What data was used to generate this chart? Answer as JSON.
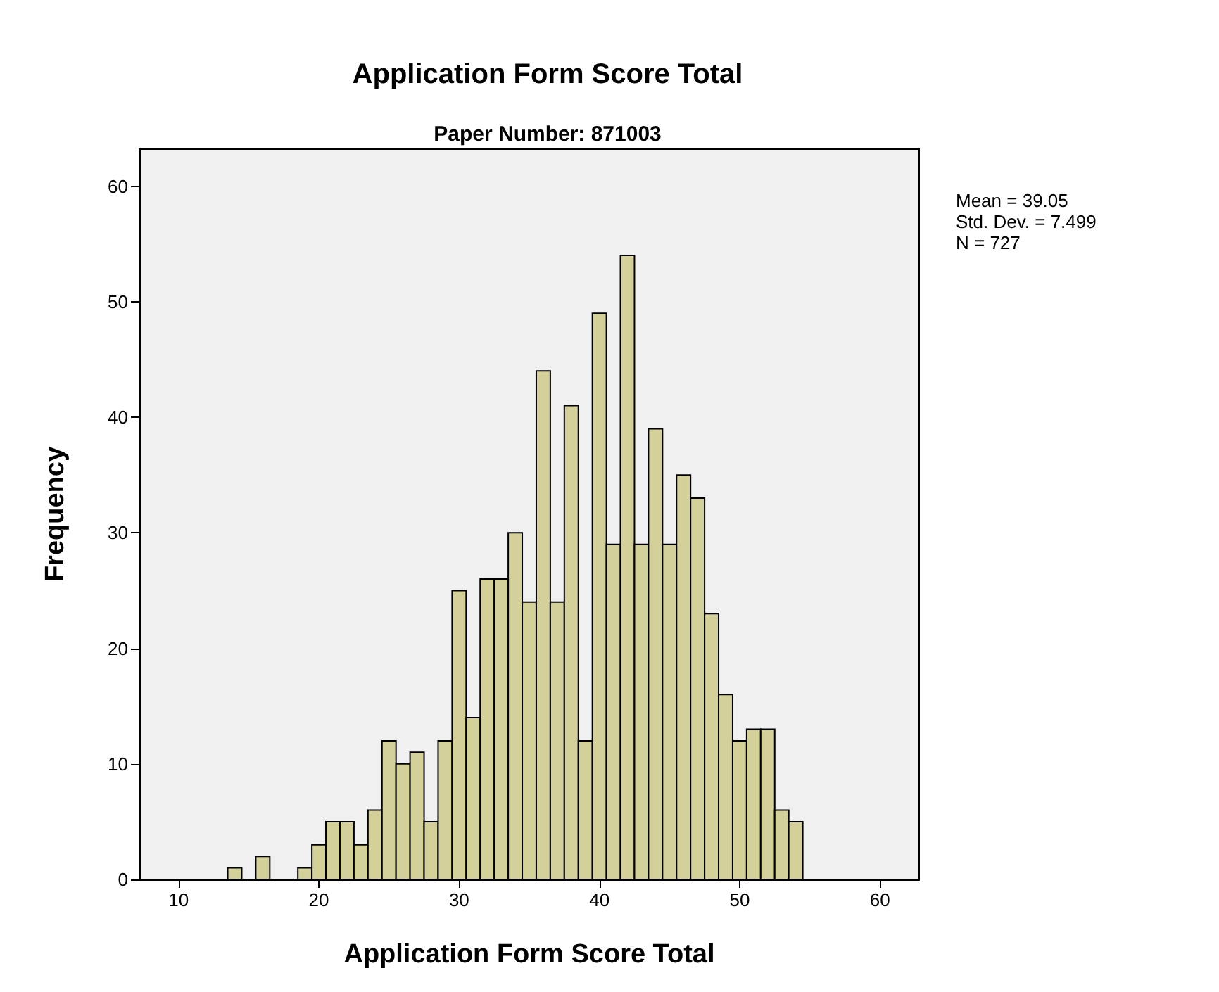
{
  "chart_data": {
    "type": "histogram",
    "title": "Application Form Score Total",
    "subtitle": "Paper Number: 871003",
    "xlabel": "Application Form Score Total",
    "ylabel": "Frequency",
    "color": "#d4d09a",
    "bins": [
      13.5,
      14.5,
      15.5,
      16.5,
      17.5,
      18.5,
      19.5,
      20.5,
      21.5,
      22.5,
      23.5,
      24.5,
      25.5,
      26.5,
      27.5,
      28.5,
      29.5,
      30.5,
      31.5,
      32.5,
      33.5,
      34.5,
      35.5,
      36.5,
      37.5,
      38.5,
      39.5,
      40.5,
      41.5,
      42.5,
      43.5,
      44.5,
      45.5,
      46.5,
      47.5,
      48.5,
      49.5,
      50.5,
      51.5,
      52.5,
      53.5,
      54.5
    ],
    "values": [
      1,
      0,
      2,
      0,
      0,
      1,
      3,
      5,
      5,
      3,
      6,
      12,
      10,
      11,
      5,
      12,
      25,
      14,
      26,
      26,
      30,
      24,
      44,
      24,
      41,
      12,
      49,
      29,
      54,
      29,
      39,
      29,
      35,
      33,
      23,
      16,
      12,
      13,
      13,
      6,
      5
    ],
    "xlim": [
      7.2,
      62.8
    ],
    "xticks": [
      10,
      20,
      30,
      40,
      50,
      60
    ],
    "ylim": [
      0,
      63.2
    ],
    "yticks": [
      0,
      10,
      20,
      30,
      40,
      50,
      60
    ],
    "annotations": [
      "Mean = 39.05",
      "Std. Dev. = 7.499",
      "N = 727"
    ]
  }
}
